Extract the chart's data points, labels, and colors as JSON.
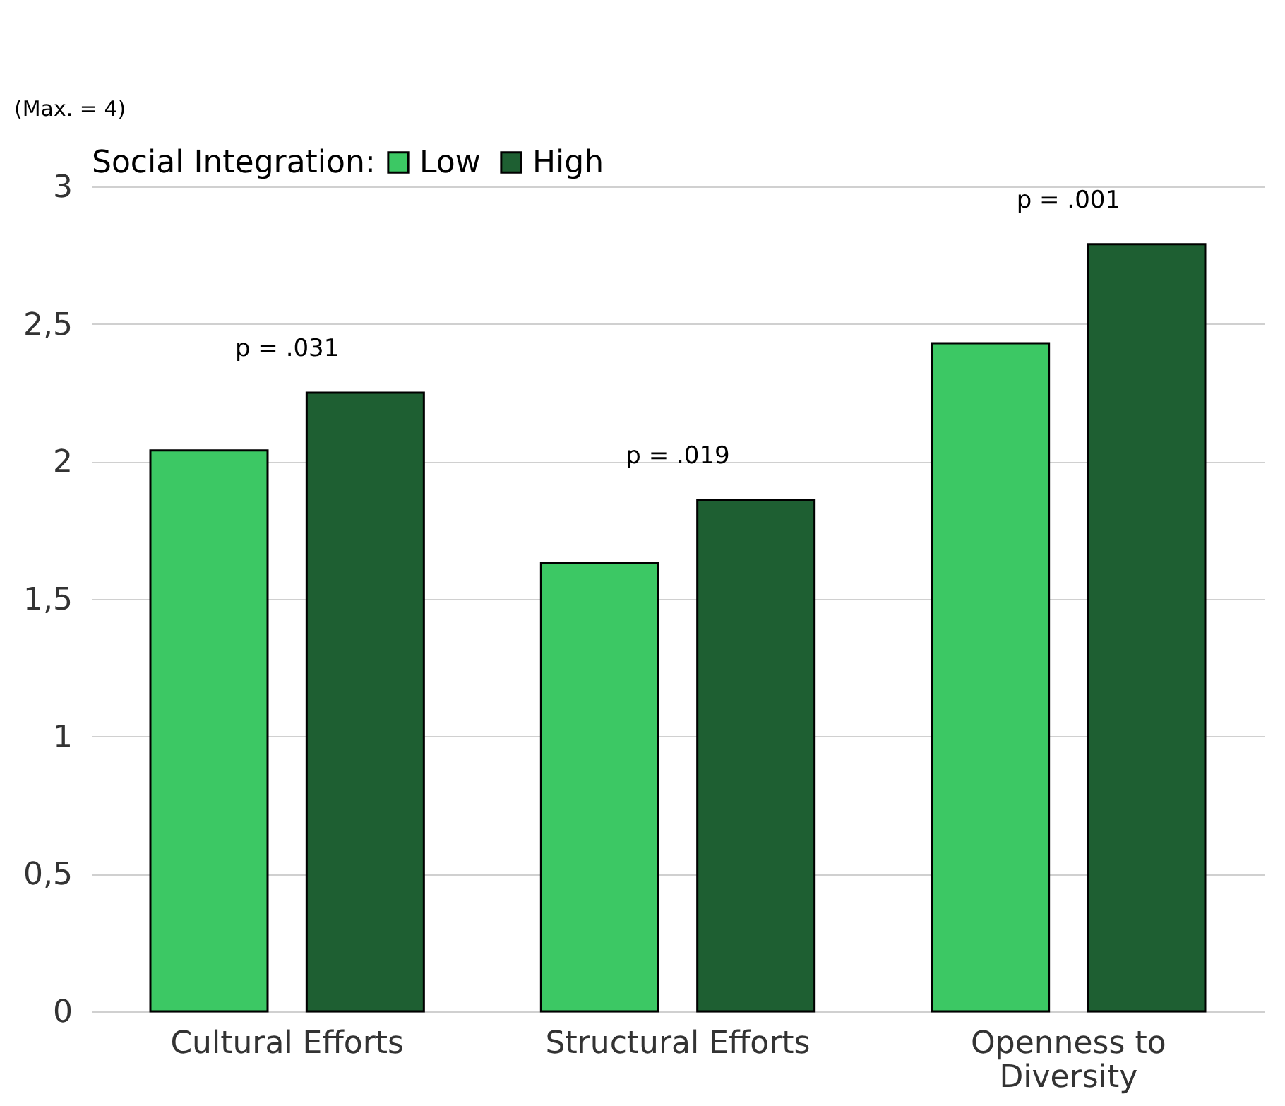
{
  "chart_data": {
    "type": "bar",
    "categories": [
      "Cultural Efforts",
      "Structural Efforts",
      "Openness to Diversity"
    ],
    "series": [
      {
        "name": "Low",
        "color": "#3cc864",
        "values": [
          2.04,
          1.63,
          2.43
        ]
      },
      {
        "name": "High",
        "color": "#1e5f32",
        "values": [
          2.25,
          1.86,
          2.79
        ]
      }
    ],
    "legend_title": "Social Integration:",
    "legend": "top",
    "ylim": [
      0,
      3
    ],
    "yticks": [
      0,
      {
        "value": 0.5,
        "label": "0,5"
      },
      1,
      {
        "value": 1.5,
        "label": "1,5"
      },
      2,
      {
        "value": 2.5,
        "label": "2,5"
      },
      3
    ],
    "grid": "y",
    "annotations": [
      "(Max. = 4)",
      "p = .031",
      "p = .019",
      "p = .001"
    ]
  }
}
